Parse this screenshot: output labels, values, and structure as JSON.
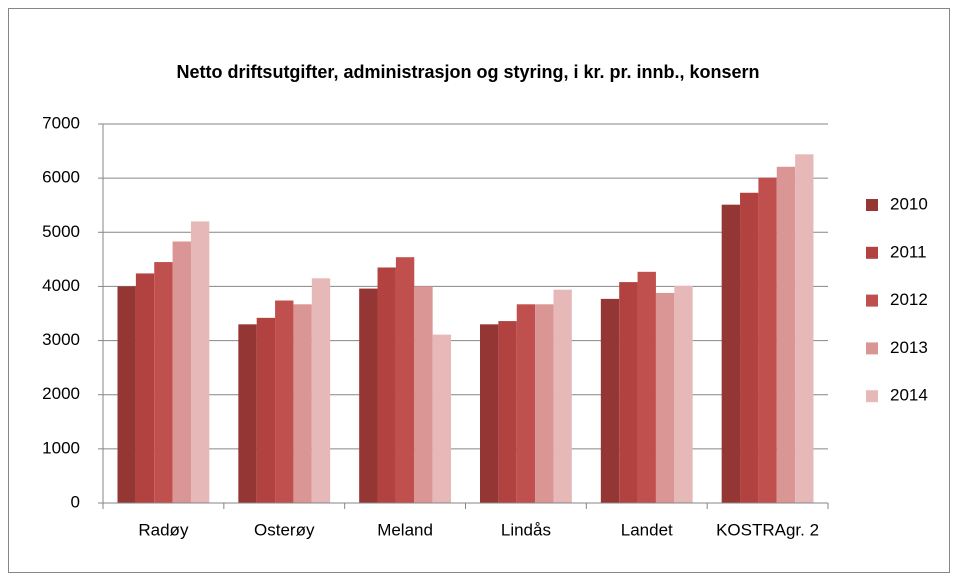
{
  "chart_data": {
    "type": "bar",
    "title": "Netto driftsutgifter, administrasjon og styring, i kr. pr. innb., konsern",
    "categories": [
      "Radøy",
      "Osterøy",
      "Meland",
      "Lindås",
      "Landet",
      "KOSTRAgr. 2"
    ],
    "series": [
      {
        "name": "2010",
        "color": "#943634",
        "values": [
          4000,
          3300,
          3960,
          3300,
          3770,
          5510
        ]
      },
      {
        "name": "2011",
        "color": "#b1423f",
        "values": [
          4240,
          3420,
          4350,
          3360,
          4080,
          5730
        ]
      },
      {
        "name": "2012",
        "color": "#c0504d",
        "values": [
          4450,
          3740,
          4540,
          3670,
          4270,
          6010
        ]
      },
      {
        "name": "2013",
        "color": "#d99694",
        "values": [
          4830,
          3670,
          4000,
          3670,
          3880,
          6210
        ]
      },
      {
        "name": "2014",
        "color": "#e6b9b8",
        "values": [
          5200,
          4150,
          3110,
          3940,
          4010,
          6440
        ]
      }
    ],
    "ylim": [
      0,
      7000
    ],
    "yticks": [
      0,
      1000,
      2000,
      3000,
      4000,
      5000,
      6000,
      7000
    ],
    "grid": true,
    "legend": "right"
  }
}
